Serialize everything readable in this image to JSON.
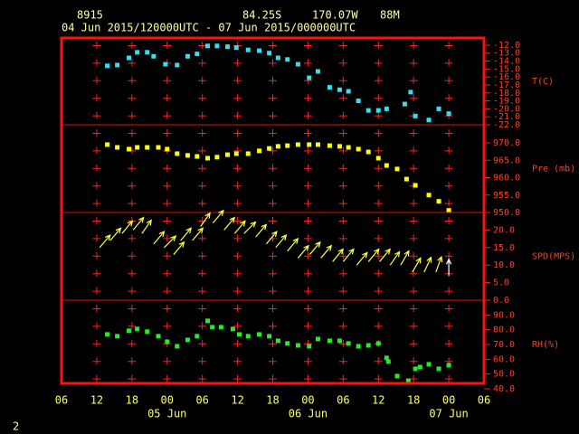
{
  "header": {
    "station": "8915",
    "lat": "84.25S",
    "lon": "170.07W",
    "elev": "88M",
    "period": "04 Jun 2015/120000UTC - 07 Jun 2015/000000UTC",
    "page": "2"
  },
  "chart_data": [
    {
      "type": "scatter",
      "y_label": "T(C)",
      "color": "#33e0f0",
      "x": [
        7.8,
        9.5,
        11.5,
        12.9,
        14.6,
        15.7,
        17.7,
        19.7,
        21.5,
        23.1,
        24.9,
        26.5,
        28.3,
        29.8,
        31.8,
        33.7,
        35.4,
        36.9,
        38.5,
        40.3,
        42.2,
        43.7,
        45.7,
        47.4,
        48.9,
        50.6,
        52.3,
        54.0,
        55.4,
        58.5,
        59.5,
        60.3,
        62.6,
        64.3,
        66.0
      ],
      "values": [
        -14.6,
        -14.5,
        -13.6,
        -12.9,
        -12.9,
        -13.4,
        -14.4,
        -14.5,
        -13.4,
        -13.1,
        -12.1,
        -12.1,
        -12.2,
        -12.3,
        -12.6,
        -12.7,
        -13.0,
        -13.6,
        -13.8,
        -14.4,
        -16.1,
        -15.3,
        -17.3,
        -17.6,
        -17.8,
        -19.0,
        -20.2,
        -20.2,
        -20.0,
        -19.4,
        -17.9,
        -20.9,
        -21.4,
        -20.0,
        -20.6
      ],
      "ylim": [
        -22.0,
        -11.1
      ],
      "yticks": [
        {
          "value": -12,
          "label": "-12.0"
        },
        {
          "value": -13,
          "label": "-13.0"
        },
        {
          "value": -14,
          "label": "-14.0"
        },
        {
          "value": -15,
          "label": "-15.0"
        },
        {
          "value": -16,
          "label": "-16.0"
        },
        {
          "value": -17,
          "label": "-17.0"
        },
        {
          "value": -18,
          "label": "-18.0"
        },
        {
          "value": -19,
          "label": "-19.0"
        },
        {
          "value": -20,
          "label": "-20.0"
        },
        {
          "value": -21,
          "label": "-21.0"
        },
        {
          "value": -22,
          "label": "-22.0"
        }
      ]
    },
    {
      "type": "scatter",
      "y_label": "Pre (mb)",
      "color": "#ffff00",
      "x": [
        7.8,
        9.5,
        11.5,
        12.9,
        14.6,
        16.5,
        18.0,
        19.7,
        21.5,
        23.1,
        24.9,
        26.5,
        28.3,
        29.8,
        31.8,
        33.7,
        35.4,
        36.9,
        38.5,
        40.3,
        42.2,
        43.7,
        45.7,
        47.4,
        48.9,
        50.6,
        52.3,
        54.0,
        55.4,
        57.2,
        58.8,
        60.3,
        62.6,
        64.3,
        66.0
      ],
      "values": [
        969.5,
        968.7,
        968.2,
        968.7,
        968.7,
        968.7,
        968.2,
        966.9,
        966.4,
        966.1,
        965.6,
        965.9,
        966.6,
        966.9,
        966.9,
        967.7,
        968.4,
        969.0,
        969.2,
        969.5,
        969.5,
        969.5,
        969.2,
        969.0,
        968.7,
        968.2,
        967.4,
        965.6,
        963.5,
        962.5,
        959.6,
        957.8,
        955.0,
        953.2,
        950.6
      ],
      "ylim": [
        950,
        975.2
      ],
      "yticks": [
        {
          "value": 970,
          "label": "970.0"
        },
        {
          "value": 965,
          "label": "965.0"
        },
        {
          "value": 960,
          "label": "960.0"
        },
        {
          "value": 955,
          "label": "955.0"
        },
        {
          "value": 950,
          "label": "950.0"
        }
      ]
    },
    {
      "type": "vector",
      "y_label": "SPD(MPS)",
      "color": "#ffff40",
      "x": [
        6.5,
        8.3,
        10.3,
        12.2,
        13.7,
        15.7,
        17.5,
        19.1,
        20.3,
        22.3,
        23.7,
        25.8,
        27.7,
        29.5,
        31.1,
        33.1,
        34.9,
        36.5,
        38.5,
        40.3,
        42.3,
        44.2,
        46.2,
        48.0,
        50.3,
        52.3,
        54.2,
        56.0,
        57.8,
        59.8,
        61.8,
        63.8,
        66.0
      ],
      "values": [
        15,
        17,
        19,
        20,
        19,
        16,
        15,
        13,
        17,
        17,
        21,
        22,
        20,
        19,
        19,
        18,
        16,
        15,
        14,
        12,
        13,
        12,
        11,
        11,
        10,
        11,
        11,
        10,
        10,
        8,
        8,
        8,
        7
      ],
      "directions": [
        40,
        40,
        40,
        40,
        35,
        40,
        45,
        40,
        40,
        40,
        35,
        40,
        40,
        40,
        45,
        40,
        40,
        40,
        40,
        40,
        40,
        40,
        40,
        40,
        40,
        40,
        40,
        35,
        30,
        30,
        25,
        20,
        0
      ],
      "ylim": [
        0,
        25
      ],
      "yticks": [
        {
          "value": 20,
          "label": "20.0"
        },
        {
          "value": 15,
          "label": "15.0"
        },
        {
          "value": 10,
          "label": "10.0"
        },
        {
          "value": 5,
          "label": "5.0"
        },
        {
          "value": 0,
          "label": "0.0"
        }
      ]
    },
    {
      "type": "scatter",
      "y_label": "RH(%)",
      "color": "#22ee22",
      "x": [
        7.8,
        9.5,
        11.5,
        12.9,
        14.6,
        16.5,
        18.0,
        19.7,
        21.5,
        23.1,
        24.9,
        25.7,
        27.2,
        29.2,
        30.3,
        31.8,
        33.7,
        35.4,
        36.9,
        38.5,
        40.3,
        42.2,
        43.7,
        45.7,
        47.4,
        48.9,
        50.6,
        52.3,
        54.0,
        55.4,
        55.7,
        57.2,
        59.1,
        60.3,
        61.1,
        62.6,
        64.3,
        66.0
      ],
      "values": [
        76.8,
        75.6,
        79.3,
        80.5,
        78.7,
        75.6,
        71.9,
        68.8,
        73.1,
        75.6,
        86.0,
        81.7,
        81.7,
        80.5,
        76.8,
        75.6,
        76.8,
        75.6,
        72.5,
        70.7,
        69.4,
        68.8,
        73.7,
        72.5,
        72.5,
        70.7,
        68.8,
        69.4,
        70.7,
        60.9,
        58.4,
        48.6,
        45.5,
        53.5,
        54.7,
        56.6,
        53.5,
        56.0
      ],
      "ylim": [
        40,
        100
      ],
      "yticks": [
        {
          "value": 90,
          "label": "90.0"
        },
        {
          "value": 80,
          "label": "80.0"
        },
        {
          "value": 70,
          "label": "70.0"
        },
        {
          "value": 60,
          "label": "60.0"
        },
        {
          "value": 50,
          "label": "50.0"
        },
        {
          "value": 40,
          "label": "40.0"
        }
      ],
      "xlim": [
        0,
        72
      ],
      "xticks": [
        {
          "value": 0,
          "label": "06"
        },
        {
          "value": 6,
          "label": "12"
        },
        {
          "value": 12,
          "label": "18"
        },
        {
          "value": 18,
          "label": "00"
        },
        {
          "value": 24,
          "label": "06"
        },
        {
          "value": 30,
          "label": "12"
        },
        {
          "value": 36,
          "label": "18"
        },
        {
          "value": 42,
          "label": "00"
        },
        {
          "value": 48,
          "label": "06"
        },
        {
          "value": 54,
          "label": "12"
        },
        {
          "value": 60,
          "label": "18"
        },
        {
          "value": 66,
          "label": "00"
        },
        {
          "value": 72,
          "label": "06"
        }
      ],
      "x_dates": [
        {
          "value": 18,
          "label": "05 Jun"
        },
        {
          "value": 42,
          "label": "06 Jun"
        },
        {
          "value": 66,
          "label": "07 Jun"
        }
      ]
    }
  ]
}
